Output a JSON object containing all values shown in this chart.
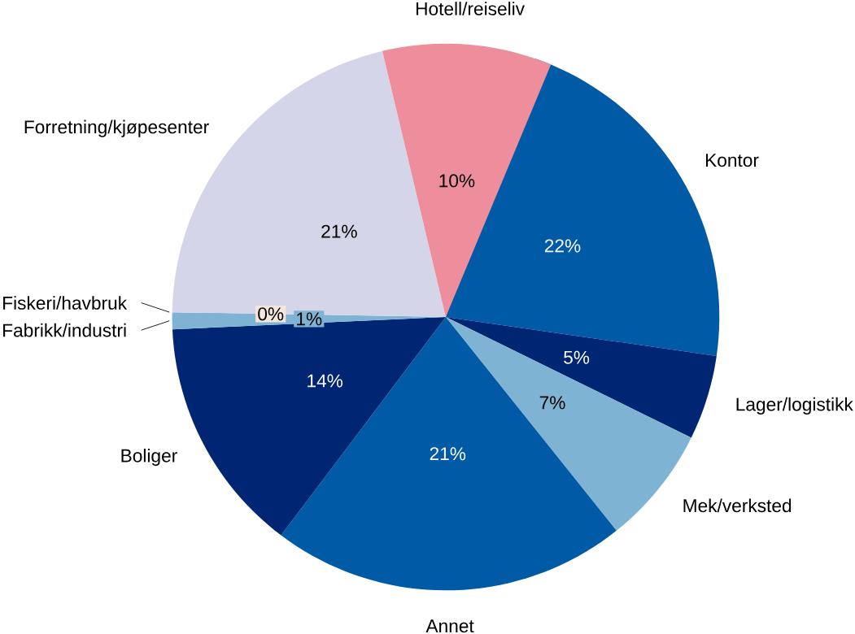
{
  "chart_data": {
    "type": "pie",
    "categories": [
      "Kontor",
      "Lager/logistikk",
      "Mek/verksted",
      "Annet",
      "Boliger",
      "Fabrikk/industri",
      "Fiskeri/havbruk",
      "Forretning/kjøpesenter",
      "Hotell/reiseliv"
    ],
    "values": [
      22,
      5,
      7,
      21,
      14,
      1,
      0,
      21,
      10
    ],
    "colors": [
      "#005aa5",
      "#002673",
      "#7fb3d4",
      "#005aa5",
      "#002673",
      "#7fb3d4",
      "#f5e6dc",
      "#d5d5ea",
      "#ee8e9c"
    ],
    "value_labels": [
      "22%",
      "5%",
      "7%",
      "21%",
      "14%",
      "1%",
      "0%",
      "21%",
      "10%"
    ]
  }
}
